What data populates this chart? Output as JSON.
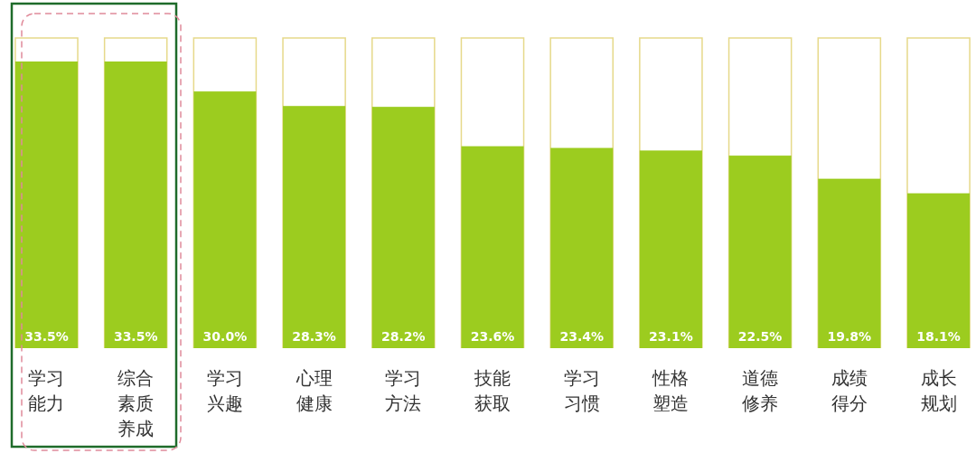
{
  "chart_data": {
    "type": "bar",
    "categories": [
      "学习能力",
      "综合素质养成",
      "学习兴趣",
      "心理健康",
      "学习方法",
      "技能获取",
      "学习习惯",
      "性格塑造",
      "道德修养",
      "成绩得分",
      "成长规划"
    ],
    "values": [
      33.5,
      33.5,
      30.0,
      28.3,
      28.2,
      23.6,
      23.4,
      23.1,
      22.5,
      19.8,
      18.1
    ],
    "value_labels": [
      "33.5%",
      "33.5%",
      "30.0%",
      "28.3%",
      "28.2%",
      "23.6%",
      "23.4%",
      "23.1%",
      "22.5%",
      "19.8%",
      "18.1%"
    ],
    "color": "#9ccc1f"
  }
}
